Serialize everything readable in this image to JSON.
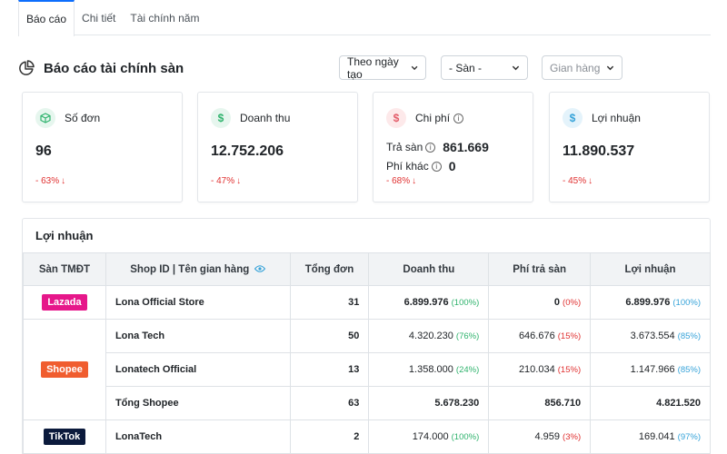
{
  "tabs": [
    "Báo cáo",
    "Chi tiết",
    "Tài chính năm"
  ],
  "header": {
    "title": "Báo cáo tài chính sàn"
  },
  "filters": {
    "date_mode": "Theo ngày tạo",
    "platform": "- Sàn -",
    "shop": "Gian hàng"
  },
  "cards": {
    "orders": {
      "label": "Số đơn",
      "value": "96",
      "delta": "- 63%"
    },
    "revenue": {
      "label": "Doanh thu",
      "value": "12.752.206",
      "delta": "- 47%"
    },
    "cost": {
      "label": "Chi phí",
      "fee_label": "Trả sàn",
      "fee_value": "861.669",
      "other_label": "Phí khác",
      "other_value": "0",
      "delta": "- 68%"
    },
    "profit": {
      "label": "Lợi nhuận",
      "value": "11.890.537",
      "delta": "- 45%"
    }
  },
  "profit_table": {
    "title": "Lợi nhuận",
    "headers": {
      "platform": "Sàn TMĐT",
      "shop": "Shop ID | Tên gian hàng",
      "orders": "Tổng đơn",
      "revenue": "Doanh thu",
      "fee": "Phí trả sàn",
      "profit": "Lợi nhuận"
    },
    "platforms": {
      "lazada": "Lazada",
      "shopee": "Shopee",
      "tiktok": "TikTok"
    },
    "colors": {
      "lazada": "#e6178a",
      "shopee": "#f05d2f",
      "tiktok": "#0b1a3c"
    },
    "rows": [
      {
        "shop": "Lona Official Store",
        "orders": "31",
        "revenue": "6.899.976",
        "revenue_pct": "(100%)",
        "fee": "0",
        "fee_pct": "(0%)",
        "profit": "6.899.976",
        "profit_pct": "(100%)"
      },
      {
        "shop": "Lona Tech",
        "orders": "50",
        "revenue": "4.320.230",
        "revenue_pct": "(76%)",
        "fee": "646.676",
        "fee_pct": "(15%)",
        "profit": "3.673.554",
        "profit_pct": "(85%)"
      },
      {
        "shop": "Lonatech Official",
        "orders": "13",
        "revenue": "1.358.000",
        "revenue_pct": "(24%)",
        "fee": "210.034",
        "fee_pct": "(15%)",
        "profit": "1.147.966",
        "profit_pct": "(85%)"
      },
      {
        "shop": "Tổng Shopee",
        "orders": "63",
        "revenue": "5.678.230",
        "fee": "856.710",
        "profit": "4.821.520"
      },
      {
        "shop": "LonaTech",
        "orders": "2",
        "revenue": "174.000",
        "revenue_pct": "(100%)",
        "fee": "4.959",
        "fee_pct": "(3%)",
        "profit": "169.041",
        "profit_pct": "(97%)"
      }
    ]
  }
}
